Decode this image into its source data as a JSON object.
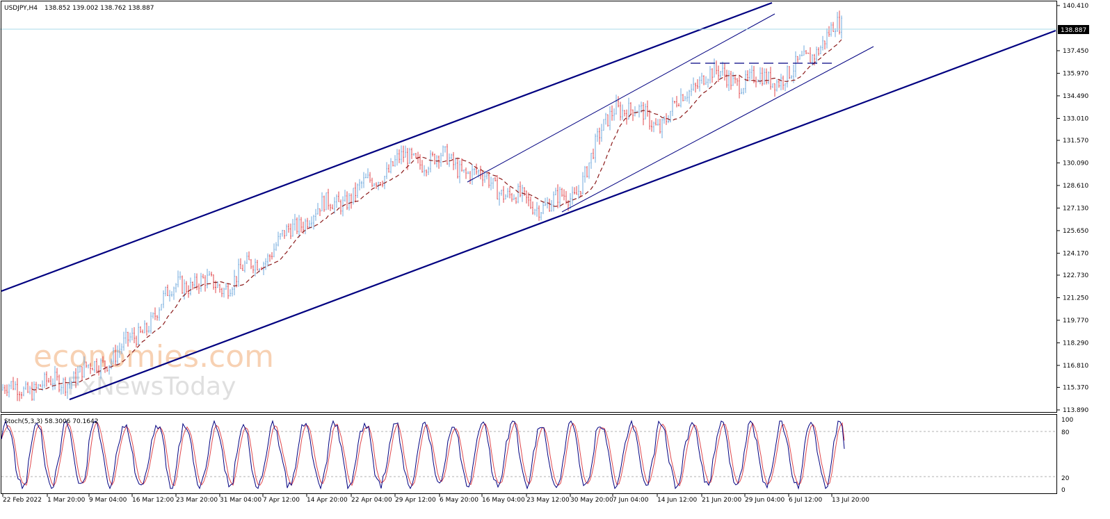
{
  "header": {
    "symbol_timeframe": "USDJPY,H4",
    "ohlc": "138.852 139.002 138.762 138.887"
  },
  "price_axis": {
    "ticks": [
      "140.410",
      "138.887",
      "137.450",
      "135.970",
      "134.490",
      "133.010",
      "131.570",
      "130.090",
      "128.610",
      "127.130",
      "125.650",
      "124.170",
      "122.730",
      "121.250",
      "119.770",
      "118.290",
      "116.810",
      "115.370",
      "113.890"
    ],
    "current_price": "138.887"
  },
  "stoch_panel": {
    "label": "Stoch(5,3,3) 58.3006 70.1642",
    "levels": [
      "100",
      "80",
      "20",
      "0"
    ]
  },
  "time_axis": {
    "labels": [
      "22 Feb 2022",
      "1 Mar 20:00",
      "9 Mar 04:00",
      "16 Mar 12:00",
      "23 Mar 20:00",
      "31 Mar 04:00",
      "7 Apr 12:00",
      "14 Apr 20:00",
      "22 Apr 04:00",
      "29 Apr 12:00",
      "6 May 20:00",
      "16 May 04:00",
      "23 May 12:00",
      "30 May 20:00",
      "7 Jun 04:00",
      "14 Jun 12:00",
      "21 Jun 20:00",
      "29 Jun 04:00",
      "6 Jul 12:00",
      "13 Jul 20:00"
    ]
  },
  "watermark": {
    "line1": "economies.com",
    "line2": "FxNewsToday"
  },
  "colors": {
    "up_bar": "#6fa8dc",
    "down_bar": "#e0474c",
    "channel": "#000080",
    "ma": "#8b1a1a",
    "stoch_main": "#000080",
    "stoch_signal": "#e0474c",
    "price_line": "#a8d8e8"
  },
  "chart_data": {
    "type": "line",
    "x": [
      "22 Feb 2022",
      "1 Mar 20:00",
      "9 Mar 04:00",
      "16 Mar 12:00",
      "23 Mar 20:00",
      "31 Mar 04:00",
      "7 Apr 12:00",
      "14 Apr 20:00",
      "22 Apr 04:00",
      "29 Apr 12:00",
      "6 May 20:00",
      "16 May 04:00",
      "23 May 12:00",
      "30 May 20:00",
      "7 Jun 04:00",
      "14 Jun 12:00",
      "21 Jun 20:00",
      "29 Jun 04:00",
      "6 Jul 12:00",
      "13 Jul 20:00"
    ],
    "series": [
      {
        "name": "USDJPY,H4",
        "values": [
          115.2,
          115.5,
          116.6,
          118.5,
          122.3,
          122.0,
          124.0,
          126.8,
          128.0,
          130.2,
          130.4,
          129.0,
          127.3,
          127.8,
          134.0,
          132.6,
          136.0,
          135.4,
          135.9,
          138.9
        ]
      }
    ],
    "ylim": [
      113.89,
      140.41
    ],
    "stochastic": {
      "k_last": 58.3006,
      "d_last": 70.1642,
      "ylim": [
        0,
        100
      ],
      "levels": [
        20,
        80
      ]
    }
  }
}
